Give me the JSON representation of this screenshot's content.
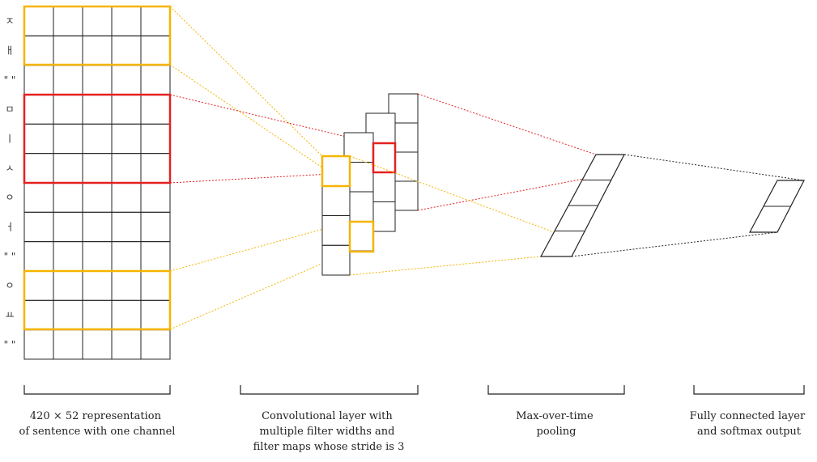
{
  "colors": {
    "grid": "#222222",
    "yellow": "#f5b400",
    "red": "#e52020",
    "black": "#222222"
  },
  "row_labels": [
    "ㅈ",
    "ㅐ",
    "\" \"",
    "ㅁ",
    "ㅣ",
    "ㅅ",
    "ㅇ",
    "ㅓ",
    "\" \"",
    "ㅇ",
    "ㅛ",
    "\" \""
  ],
  "captions": {
    "input": [
      "420 × 52 representation",
      "of sentence with one channel"
    ],
    "conv": [
      "Convolutional layer with",
      "multiple filter widths and",
      "filter maps whose stride is 3"
    ],
    "pool": [
      "Max-over-time",
      "pooling"
    ],
    "fc": [
      "Fully connected layer",
      "and softmax output"
    ]
  }
}
